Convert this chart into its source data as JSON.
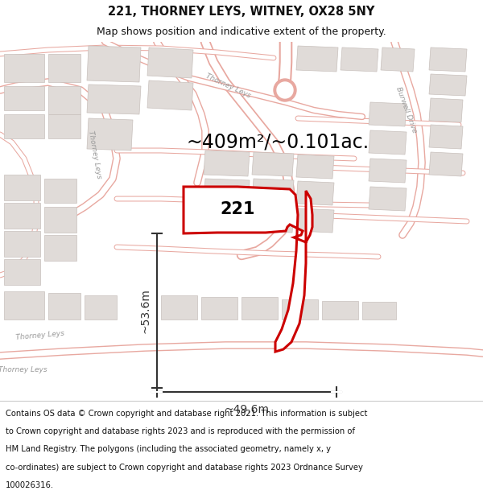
{
  "title_line1": "221, THORNEY LEYS, WITNEY, OX28 5NY",
  "title_line2": "Map shows position and indicative extent of the property.",
  "area_text": "~409m²/~0.101ac.",
  "label_221": "221",
  "dim_vertical": "~53.6m",
  "dim_horizontal": "~49.6m",
  "footer_lines": [
    "Contains OS data © Crown copyright and database right 2021. This information is subject",
    "to Crown copyright and database rights 2023 and is reproduced with the permission of",
    "HM Land Registry. The polygons (including the associated geometry, namely x, y",
    "co-ordinates) are subject to Crown copyright and database rights 2023 Ordnance Survey",
    "100026316."
  ],
  "bg_color": "#ffffff",
  "map_bg": "#ffffff",
  "road_stroke": "#e8a8a0",
  "road_fill": "#ffffff",
  "building_fill": "#e0dbd8",
  "building_stroke": "#c8c0bc",
  "plot_color": "#cc0000",
  "dim_color": "#333333",
  "road_label_color": "#999999",
  "text_color": "#111111",
  "title_fontsize": 10.5,
  "subtitle_fontsize": 9,
  "area_fontsize": 17,
  "label_fontsize": 15,
  "dim_fontsize": 10,
  "footer_fontsize": 7.2,
  "road_lw": 1.2,
  "road_fill_lw": 8,
  "building_lw": 0.5
}
